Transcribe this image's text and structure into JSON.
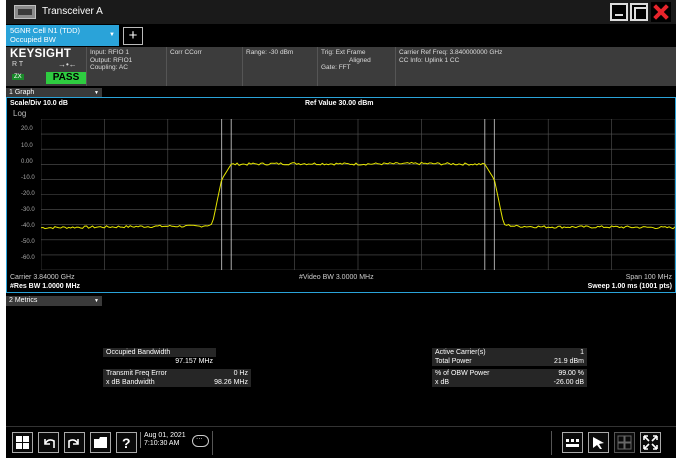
{
  "window": {
    "title": "Transceiver A"
  },
  "mode_tab": {
    "line1": "5GNR Cell N1 (TDD)",
    "line2": "Occupied BW"
  },
  "settings_bar": {
    "brand": "KEYSIGHT",
    "rt_label": "R  T",
    "status": "PASS",
    "input": [
      "Input: RFIO 1",
      "Output: RFIO1",
      "Coupling: AC"
    ],
    "corr": [
      "Corr CCorr"
    ],
    "range": [
      "Range: -30 dBm"
    ],
    "trig": [
      "Trig: Ext Frame",
      "Aligned",
      "Gate: FFT"
    ],
    "carrier": [
      "Carrier Ref Freq: 3.840000000 GHz",
      "CC Info: Uplink 1 CC"
    ]
  },
  "graph": {
    "window_label": "1 Graph",
    "scale": "Scale/Div 10.0 dB",
    "scale_type": "Log",
    "ref_value": "Ref Value 30.00 dBm",
    "y_ticks": [
      "20.0",
      "10.0",
      "0.00",
      "-10.0",
      "-20.0",
      "-30.0",
      "-40.0",
      "-50.0",
      "-60.0"
    ],
    "footer_left_1": "Carrier 3.84000 GHz",
    "footer_left_2": "#Res BW 1.0000 MHz",
    "footer_center": "#Video BW 3.0000 MHz",
    "footer_right_1": "Span 100 MHz",
    "footer_right_2": "Sweep 1.00 ms (1001 pts)"
  },
  "chart_data": {
    "type": "line",
    "xlabel": "",
    "ylabel": "",
    "x_range_mhz": [
      -50,
      50
    ],
    "ylim": [
      -70,
      30
    ],
    "y_unit": "dBm",
    "grid": true,
    "series": [
      {
        "x": [
          -50,
          -40,
          -30,
          -25,
          -23,
          -21.5,
          -20,
          -10,
          0,
          10,
          20,
          21.5,
          23,
          25,
          30,
          40,
          50
        ],
        "values": [
          -42,
          -41.5,
          -41,
          -41,
          -40,
          -10,
          0,
          0.5,
          0.2,
          0.5,
          0,
          -10,
          -40,
          -41,
          -41.5,
          -41.5,
          -42
        ]
      }
    ],
    "markers_mhz": [
      -21.5,
      -20,
      20,
      21.5
    ]
  },
  "metrics": {
    "window_label": "2 Metrics",
    "occ_bw_label": "Occupied Bandwidth",
    "occ_bw_value": "97.157 MHz",
    "freq_err_label": "Transmit Freq Error",
    "freq_err_value": "0 Hz",
    "xdb_bw_label": "x dB Bandwidth",
    "xdb_bw_value": "98.26 MHz",
    "active_carriers_label": "Active Carrier(s)",
    "active_carriers_value": "1",
    "total_power_label": "Total Power",
    "total_power_value": "21.9 dBm",
    "obw_power_label": "% of OBW Power",
    "obw_power_value": "99.00 %",
    "xdb_label": "x dB",
    "xdb_value": "-26.00 dB"
  },
  "taskbar": {
    "date": "Aug 01, 2021",
    "time": "7:10:30 AM"
  },
  "colors": {
    "accent": "#2aa3d9",
    "trace": "#e6e600",
    "pass": "#2ecc40"
  }
}
